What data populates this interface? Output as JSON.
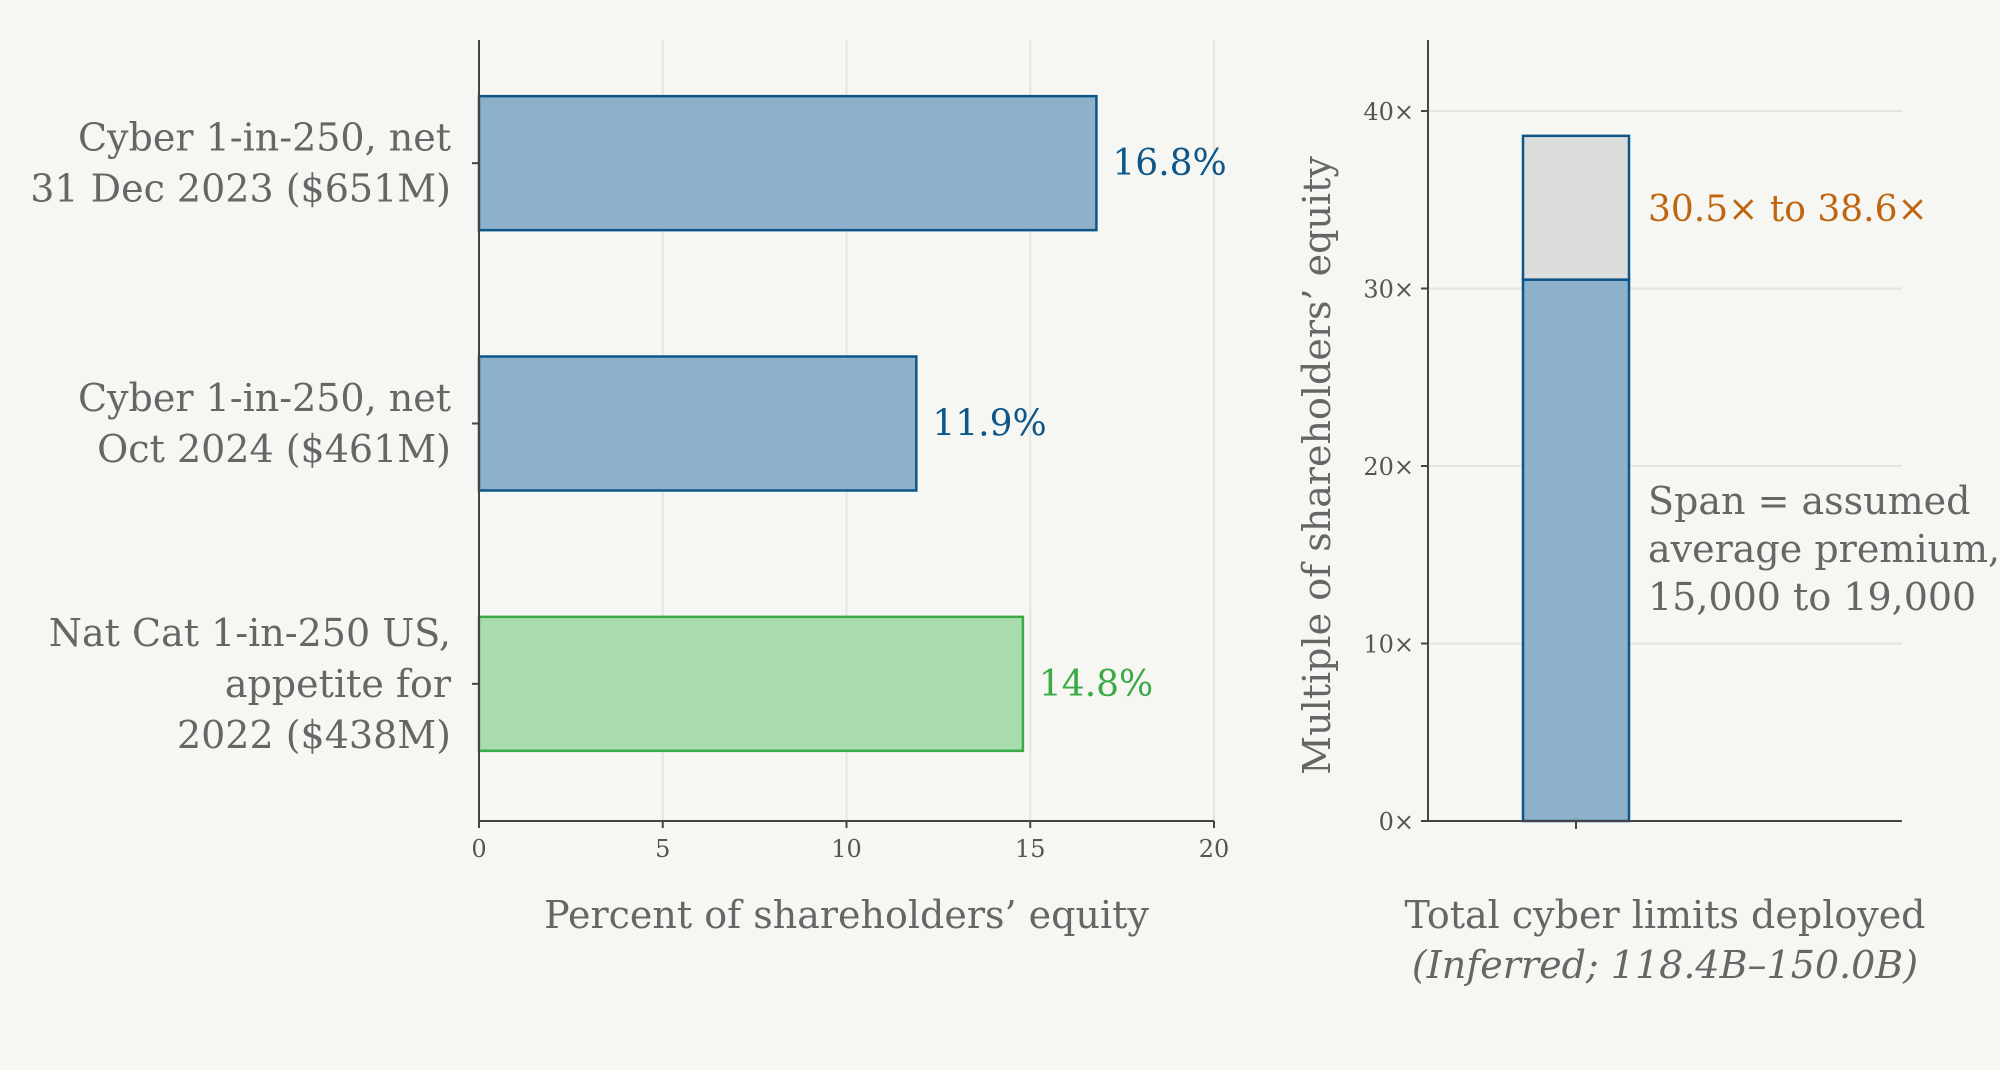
{
  "chart_data": [
    {
      "type": "bar",
      "orientation": "horizontal",
      "categories": [
        [
          "Cyber 1-in-250, net",
          "31 Dec 2023 ($651M)"
        ],
        [
          "Cyber 1-in-250, net",
          "Oct 2024 ($461M)"
        ],
        [
          "Nat Cat 1-in-250 US,",
          "appetite for",
          "2022 ($438M)"
        ]
      ],
      "values": [
        16.8,
        11.9,
        14.8
      ],
      "value_labels": [
        "16.8%",
        "11.9%",
        "14.8%"
      ],
      "colors": [
        {
          "fill": "#8db1ca",
          "stroke": "#0e5688",
          "label": "#0e5688"
        },
        {
          "fill": "#8db1ca",
          "stroke": "#0e5688",
          "label": "#0e5688"
        },
        {
          "fill": "#a8dcae",
          "stroke": "#3aaa47",
          "label": "#3aaa47"
        }
      ],
      "xlim": [
        0,
        20
      ],
      "xticks": [
        0,
        5,
        10,
        15,
        20
      ],
      "xlabel": "Percent of shareholders’ equity",
      "grid": true
    },
    {
      "type": "bar",
      "stacked": true,
      "category": "",
      "segments": [
        {
          "from": 0,
          "to": 30.5,
          "fill": "#8db1ca",
          "stroke": "#0e5688"
        },
        {
          "from": 30.5,
          "to": 38.6,
          "fill": "#dcdedd",
          "stroke": "#0e5688"
        }
      ],
      "ylim": [
        0,
        44
      ],
      "yticks": [
        0,
        10,
        20,
        30,
        40
      ],
      "ytick_labels": [
        "0×",
        "10×",
        "20×",
        "30×",
        "40×"
      ],
      "ylabel": "Multiple of shareholders’ equity",
      "xlabel": "Total cyber limits deployed",
      "xlabel_sub": "(Inferred; 118.4B–150.0B)",
      "range_label": "30.5× to 38.6×",
      "range_label_color": "#c0650f",
      "note": [
        "Span = assumed",
        "average premium,",
        "15,000 to 19,000"
      ],
      "grid": true
    }
  ]
}
